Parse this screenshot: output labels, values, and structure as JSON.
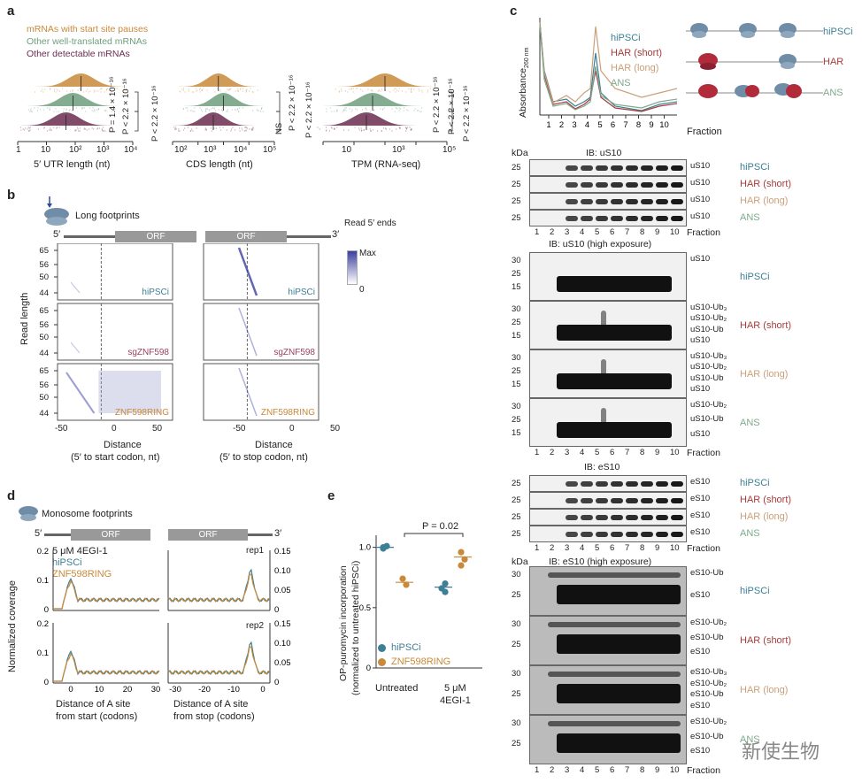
{
  "panel_a": {
    "letter": "a",
    "legend": [
      "mRNAs with start site pauses",
      "Other well-translated mRNAs",
      "Other detectable mRNAs"
    ],
    "colors": {
      "pause": "#c8893a",
      "well": "#6e9e7c",
      "other": "#6b2d4f"
    },
    "xlabels": [
      "5′ UTR length (nt)",
      "CDS length (nt)",
      "TPM (RNA-seq)"
    ],
    "ticks1": [
      "1",
      "10",
      "10²",
      "10³",
      "10⁴"
    ],
    "ticks2": [
      "10²",
      "10³",
      "10⁴",
      "10⁵"
    ],
    "ticks3": [
      "10",
      "10³",
      "10⁵"
    ],
    "pvals": [
      "P = 1.4 × 10⁻¹⁶",
      "P < 2.2 × 10⁻¹⁶",
      "P < 2.2 × 10⁻¹⁶",
      "NS",
      "P < 2.2 × 10⁻¹⁶",
      "P < 2.2 × 10⁻¹⁶",
      "P < 2.2 × 10⁻¹⁶",
      "P < 2.2 × 10⁻¹⁶",
      "P < 2.2 × 10⁻¹⁶"
    ]
  },
  "panel_b": {
    "letter": "b",
    "title": "Long footprints",
    "five": "5′",
    "three": "3′",
    "orf": "ORF",
    "scale_title": "Read\n5′ ends",
    "scale_max": "Max",
    "scale_min": "0",
    "ylabel": "Read length",
    "yticks": [
      "65",
      "56",
      "50",
      "44"
    ],
    "xticks": [
      "-50",
      "0",
      "50"
    ],
    "xlabel1": "Distance",
    "xlabel1b": "(5′ to start codon, nt)",
    "xlabel2": "Distance",
    "xlabel2b": "(5′ to stop codon, nt)",
    "rows": [
      "hiPSCi",
      "sgZNF598",
      "ZNF598RING"
    ],
    "row_colors": [
      "#3d7f94",
      "#9b3f63",
      "#c8893a"
    ]
  },
  "panel_c": {
    "letter": "c",
    "ylabel": "Absorbance",
    "ylabel_sub": "260 nm",
    "xlabel": "Fraction",
    "fractions": [
      "1",
      "2",
      "3",
      "4",
      "5",
      "6",
      "7",
      "8",
      "9",
      "10"
    ],
    "legend": [
      "hiPSCi",
      "HAR (short)",
      "HAR (long)",
      "ANS"
    ],
    "legend_colors": [
      "#3d7f94",
      "#a83a3a",
      "#c9a07a",
      "#7fa98c"
    ],
    "diagram_labels": [
      "hiPSCi",
      "HAR",
      "ANS"
    ],
    "kda": "kDa",
    "blot1_title": "IB: uS10",
    "blot1_mw": [
      "25",
      "25",
      "25",
      "25"
    ],
    "blot1_band": "uS10",
    "blot2_title": "IB: uS10 (high exposure)",
    "blot2_mw": [
      "30",
      "25",
      "15"
    ],
    "blot2_labels": [
      [
        "uS10"
      ],
      [
        "uS10-Ub₃",
        "uS10-Ub₂",
        "uS10-Ub",
        "uS10"
      ],
      [
        "uS10-Ub₃",
        "uS10-Ub₂",
        "uS10-Ub",
        "uS10"
      ],
      [
        "uS10-Ub₂",
        "uS10-Ub",
        "uS10"
      ]
    ],
    "blot3_title": "IB: eS10",
    "blot3_band": "eS10",
    "blot4_title": "IB: eS10 (high exposure)",
    "blot4_labels": [
      [
        "eS10-Ub",
        "eS10"
      ],
      [
        "eS10-Ub₂",
        "eS10-Ub",
        "eS10"
      ],
      [
        "eS10-Ub₃",
        "eS10-Ub₂",
        "eS10-Ub",
        "eS10"
      ],
      [
        "eS10-Ub₂",
        "eS10-Ub",
        "eS10"
      ]
    ],
    "watermark": "新使生物"
  },
  "panel_d": {
    "letter": "d",
    "title": "Monosome footprints",
    "five": "5′",
    "three": "3′",
    "orf": "ORF",
    "treatment": "5 μM 4EGI-1",
    "legend": [
      "hiPSCi",
      "ZNF598RING"
    ],
    "rep": [
      "rep1",
      "rep2"
    ],
    "ylabel": "Normalized coverage",
    "yticks_left": [
      "0.2",
      "0.1",
      "0"
    ],
    "yticks_right": [
      "0.15",
      "0.10",
      "0.05",
      "0"
    ],
    "xticks1": [
      "0",
      "10",
      "20",
      "30"
    ],
    "xticks2": [
      "-30",
      "-20",
      "-10",
      "0"
    ],
    "xlabel1": "Distance of A site",
    "xlabel1b": "from start (codons)",
    "xlabel2": "Distance of A site",
    "xlabel2b": "from stop (codons)"
  },
  "panel_e": {
    "letter": "e",
    "ylabel": "OP-puromycin incorporation",
    "ylabel2": "(normalized to untreated hiPSCi)",
    "yticks": [
      "1.0",
      "0.5",
      "0"
    ],
    "pval": "P = 0.02",
    "xlabels": [
      "Untreated",
      "5 μM",
      "4EGI-1"
    ],
    "legend": [
      "hiPSCi",
      "ZNF598RING"
    ]
  },
  "chart_data": [
    {
      "type": "scatter",
      "xlabel": "",
      "ylabel": "OP-puromycin incorporation (normalized to untreated hiPSCi)",
      "ylim": [
        0,
        1.1
      ],
      "categories": [
        "Untreated",
        "5 μM 4EGI-1"
      ],
      "series": [
        {
          "name": "hiPSCi",
          "color": "#3d7f94",
          "points": [
            [
              0,
              1.0
            ],
            [
              0,
              1.01
            ],
            [
              0,
              0.99
            ],
            [
              1,
              0.7
            ],
            [
              1,
              0.66
            ],
            [
              1,
              0.63
            ]
          ]
        },
        {
          "name": "ZNF598RING",
          "color": "#c8893a",
          "points": [
            [
              0,
              0.74
            ],
            [
              0,
              0.69
            ],
            [
              1,
              0.96
            ],
            [
              1,
              0.9
            ],
            [
              1,
              0.85
            ]
          ]
        }
      ],
      "means": {
        "hiPSCi": [
          1.0,
          0.67
        ],
        "ZNF598RING": [
          0.71,
          0.92
        ]
      }
    }
  ]
}
